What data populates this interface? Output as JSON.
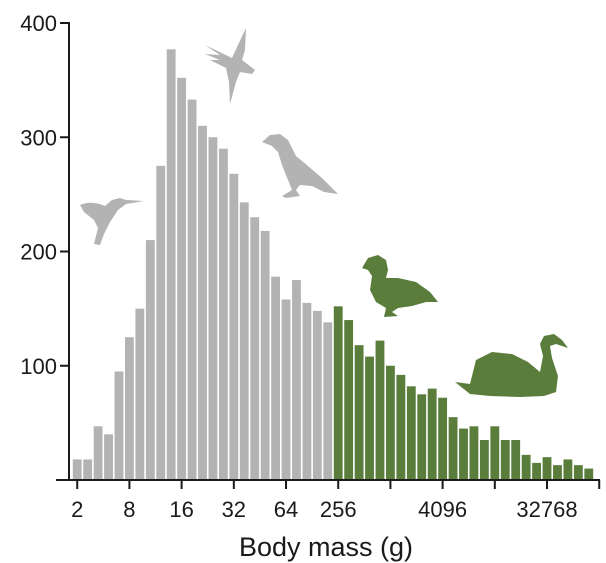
{
  "chart_data": {
    "type": "bar",
    "xlabel": "Body mass (g)",
    "ylabel": "",
    "ylim": [
      0,
      400
    ],
    "y_ticks": [
      100,
      200,
      300,
      400
    ],
    "x_tick_labels": [
      "2",
      "8",
      "16",
      "32",
      "64",
      "256",
      "4096",
      "32768"
    ],
    "x_tick_label_bins": [
      0,
      5,
      10,
      15,
      20,
      25,
      35,
      45
    ],
    "x_tick_bins": [
      0,
      5,
      10,
      15,
      20,
      25,
      30,
      35,
      40,
      45,
      50
    ],
    "grid": false,
    "legend": "none",
    "values": [
      18,
      18,
      47,
      40,
      95,
      125,
      150,
      210,
      275,
      377,
      352,
      333,
      310,
      300,
      290,
      268,
      243,
      230,
      218,
      178,
      158,
      175,
      155,
      148,
      138,
      152,
      140,
      118,
      108,
      122,
      100,
      92,
      82,
      75,
      80,
      72,
      55,
      45,
      47,
      35,
      47,
      35,
      35,
      22,
      15,
      20,
      13,
      18,
      13,
      10
    ],
    "series_groups": [
      {
        "from_bin": 0,
        "to_bin": 24,
        "color": "#b3b3b3"
      },
      {
        "from_bin": 25,
        "to_bin": 49,
        "color": "#5a7d3c"
      }
    ],
    "annotations": [
      {
        "name": "hummingbird-icon",
        "color": "#b3b3b3"
      },
      {
        "name": "swallow-icon",
        "color": "#b3b3b3"
      },
      {
        "name": "crow-icon",
        "color": "#b3b3b3"
      },
      {
        "name": "duck-icon",
        "color": "#5a7d3c"
      },
      {
        "name": "swan-icon",
        "color": "#5a7d3c"
      }
    ]
  }
}
